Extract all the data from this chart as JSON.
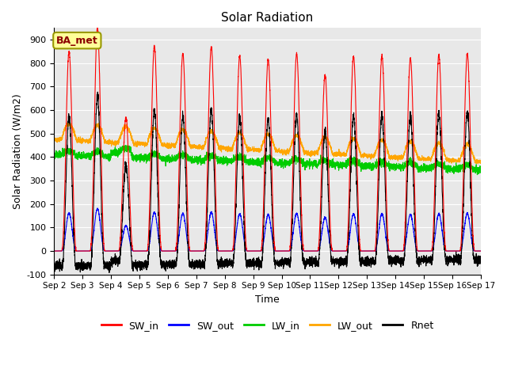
{
  "title": "Solar Radiation",
  "xlabel": "Time",
  "ylabel": "Solar Radiation (W/m2)",
  "annotation": "BA_met",
  "ylim": [
    -100,
    950
  ],
  "yticks": [
    -100,
    0,
    100,
    200,
    300,
    400,
    500,
    600,
    700,
    800,
    900
  ],
  "x_tick_labels": [
    "Sep 2",
    "Sep 3",
    "Sep 4",
    "Sep 5",
    "Sep 6",
    "Sep 7",
    "Sep 8",
    "Sep 9",
    "Sep 10",
    "Sep 11",
    "Sep 12",
    "Sep 13",
    "Sep 14",
    "Sep 15",
    "Sep 16",
    "Sep 17"
  ],
  "colors": {
    "SW_in": "#FF0000",
    "SW_out": "#0000FF",
    "LW_in": "#00CC00",
    "LW_out": "#FFA500",
    "Rnet": "#000000"
  },
  "background_color": "#E8E8E8",
  "n_days": 15,
  "points_per_day": 288
}
